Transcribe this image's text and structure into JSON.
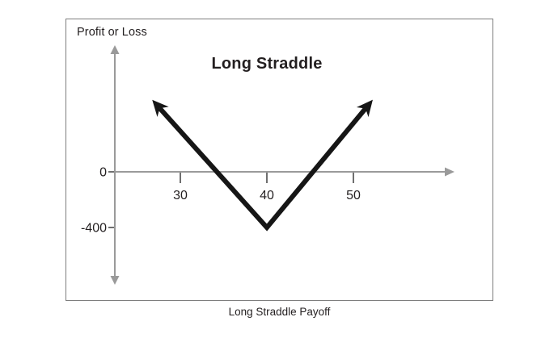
{
  "figure": {
    "title": "Long Straddle",
    "y_axis_title": "Profit or Loss",
    "caption": "Long Straddle Payoff"
  },
  "colors": {
    "background": "#ffffff",
    "frame_border": "#7e7e7e",
    "axis": "#9a9a9a",
    "tick": "#3f3f3f",
    "payoff_line": "#161616",
    "text": "#231f20"
  },
  "chart_data": {
    "type": "line",
    "title": "Long Straddle",
    "xlabel": "",
    "ylabel": "Profit or Loss",
    "caption": "Long Straddle Payoff",
    "x_ticks": [
      30,
      40,
      50
    ],
    "y_ticks": [
      0,
      -400
    ],
    "xlim": [
      22,
      62
    ],
    "ylim": [
      -800,
      900
    ],
    "grid": false,
    "legend": "none",
    "series": [
      {
        "name": "Long Straddle Payoff",
        "points": [
          [
            27,
            500
          ],
          [
            40,
            -400
          ],
          [
            52,
            500
          ]
        ],
        "style": "thick black V line with arrowheads at both ends",
        "vertex": [
          40,
          -400
        ]
      }
    ]
  }
}
